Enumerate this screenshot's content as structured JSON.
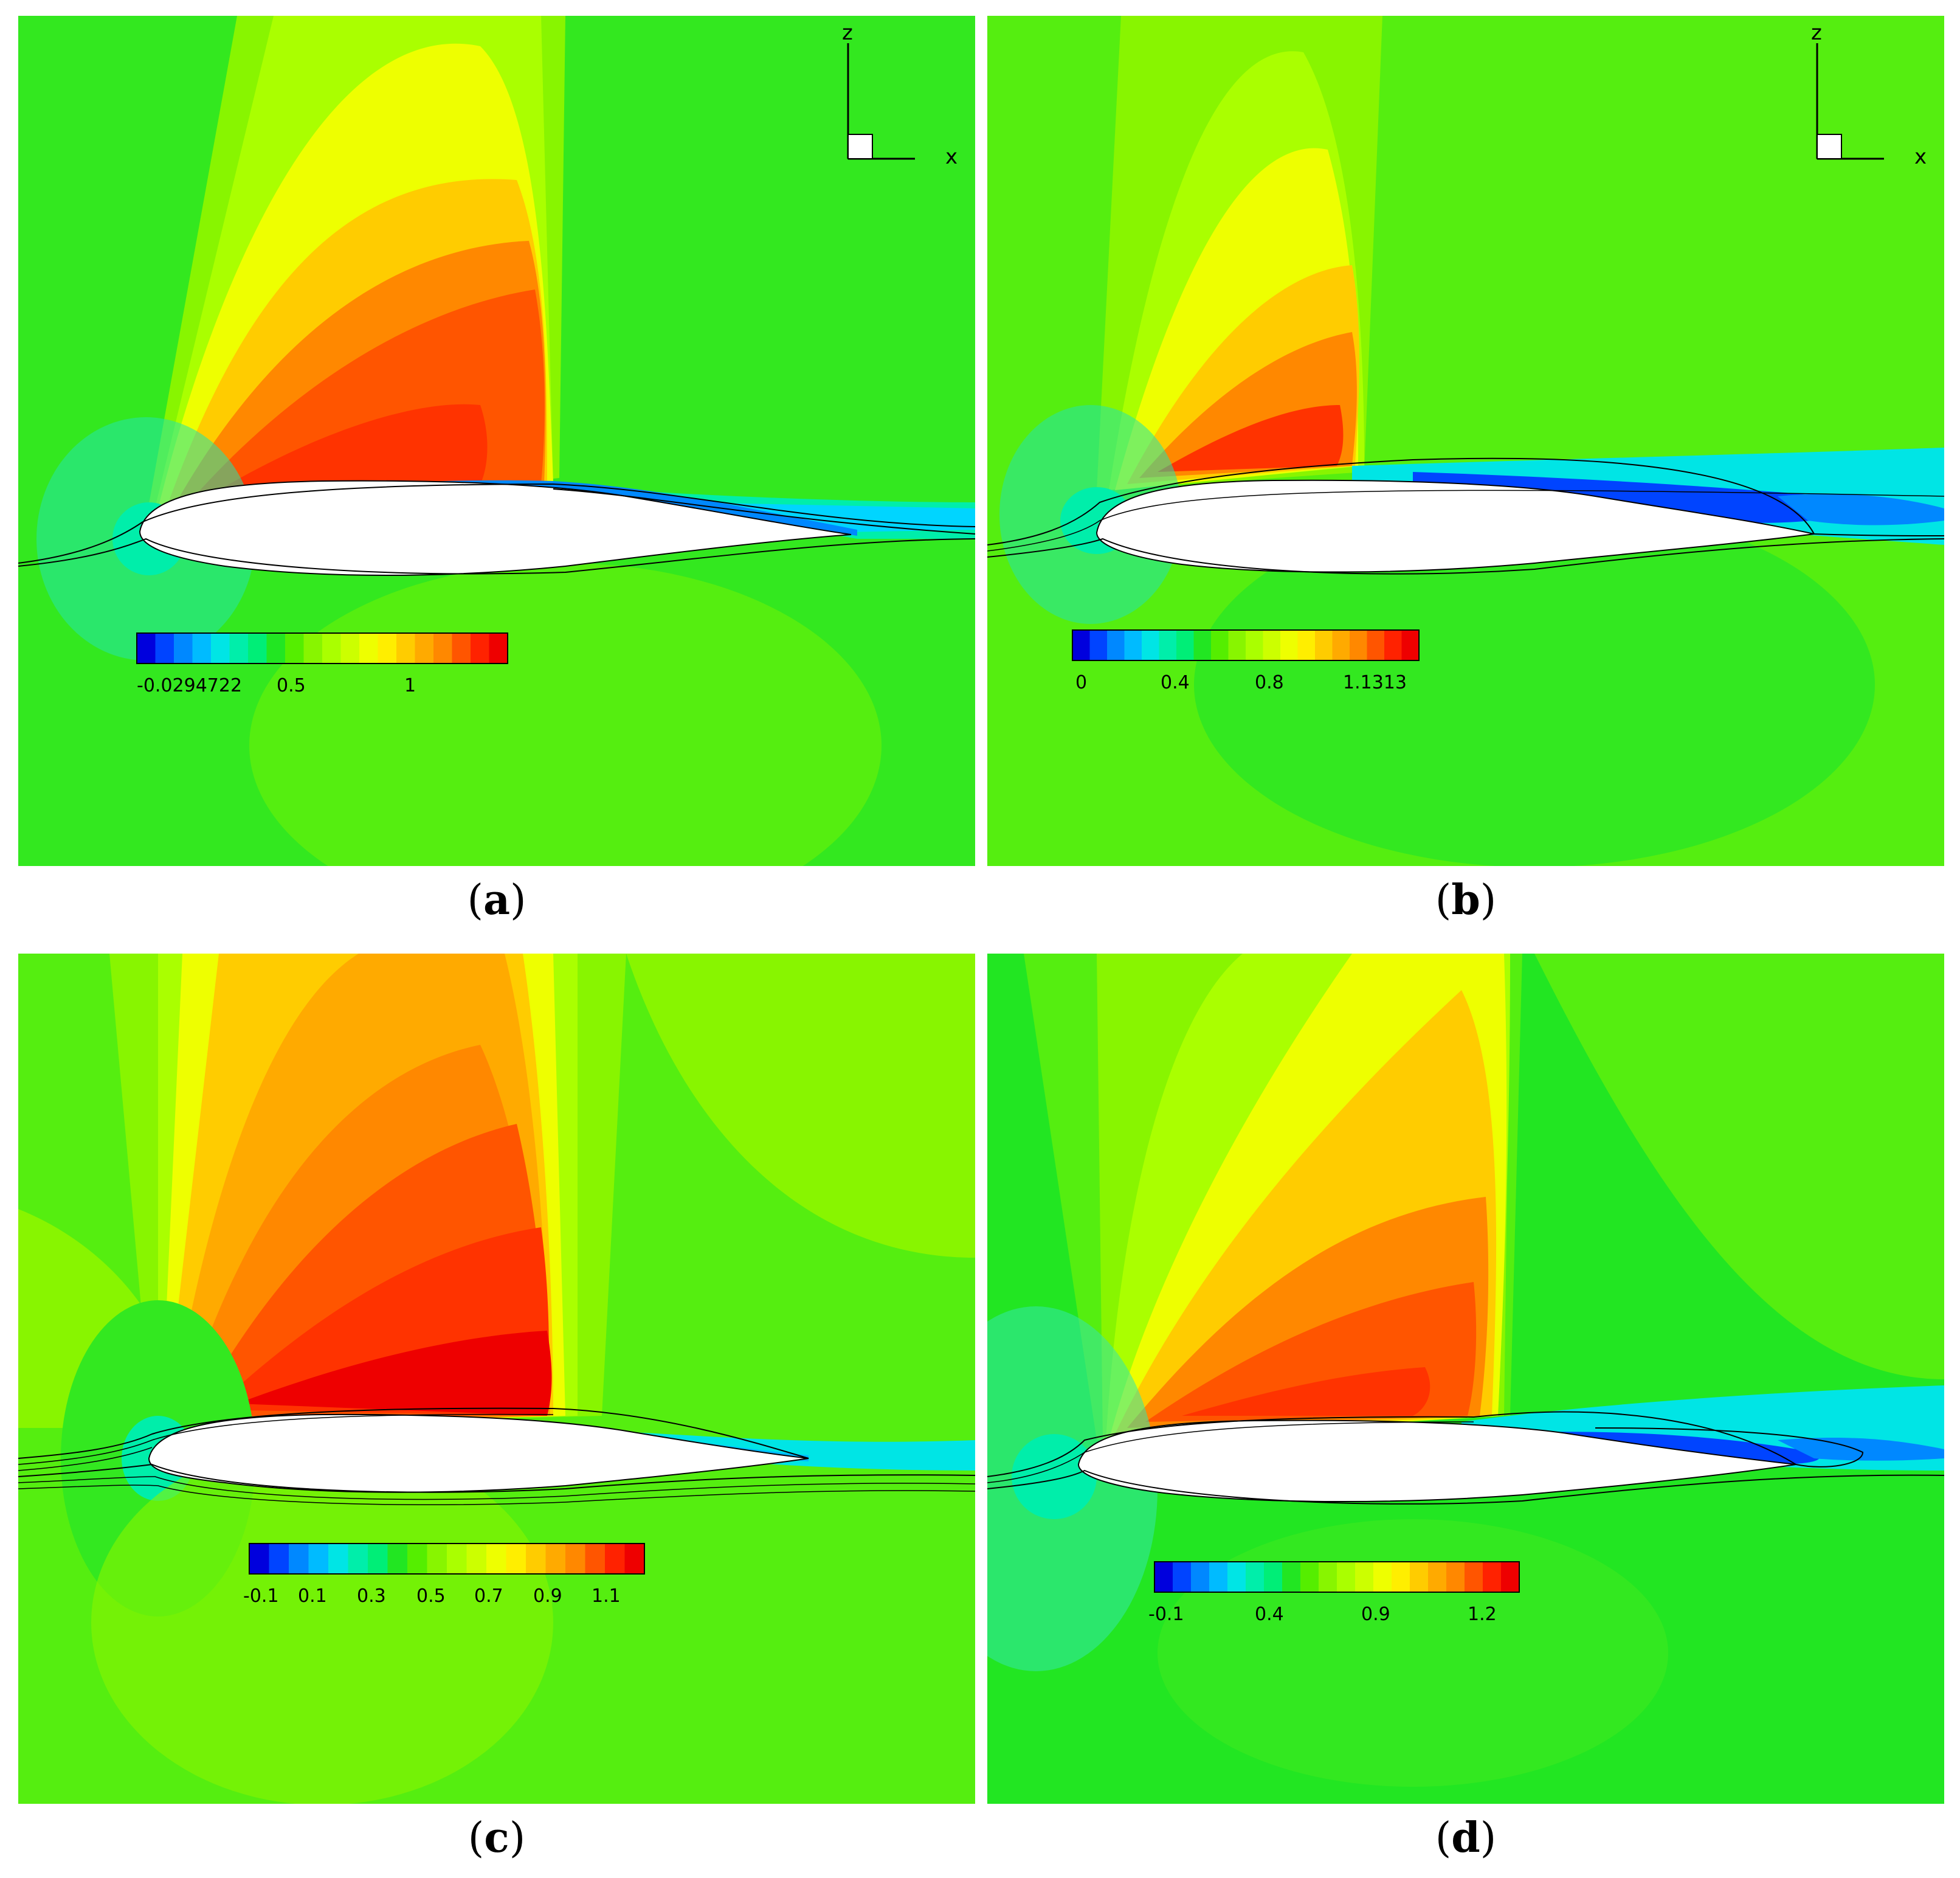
{
  "axes": {
    "z_label": "z",
    "x_label": "x"
  },
  "panels": [
    {
      "id": "a",
      "caption": "a",
      "show_axes": true,
      "colorbar": {
        "ticks": [
          "-0.0294722",
          "0.5",
          "1"
        ]
      }
    },
    {
      "id": "b",
      "caption": "b",
      "show_axes": true,
      "colorbar": {
        "ticks": [
          "0",
          "0.4",
          "0.8",
          "1.1313"
        ]
      }
    },
    {
      "id": "c",
      "caption": "c",
      "show_axes": false,
      "colorbar": {
        "ticks": [
          "-0.1",
          "0.1",
          "0.3",
          "0.5",
          "0.7",
          "0.9",
          "1.1"
        ]
      }
    },
    {
      "id": "d",
      "caption": "d",
      "show_axes": false,
      "colorbar": {
        "ticks": [
          "-0.1",
          "0.4",
          "0.9",
          "1.2"
        ]
      }
    }
  ],
  "colors": {
    "freestream": "#22e622",
    "palette": [
      "#0000dd",
      "#0044ff",
      "#0088ff",
      "#00bbff",
      "#00e5e5",
      "#00eeaa",
      "#00ee77",
      "#22e622",
      "#55ee00",
      "#88f500",
      "#aaff00",
      "#ccff00",
      "#eeff00",
      "#ffee00",
      "#ffcc00",
      "#ffaa00",
      "#ff8800",
      "#ff5500",
      "#ff2200",
      "#ee0000"
    ]
  }
}
